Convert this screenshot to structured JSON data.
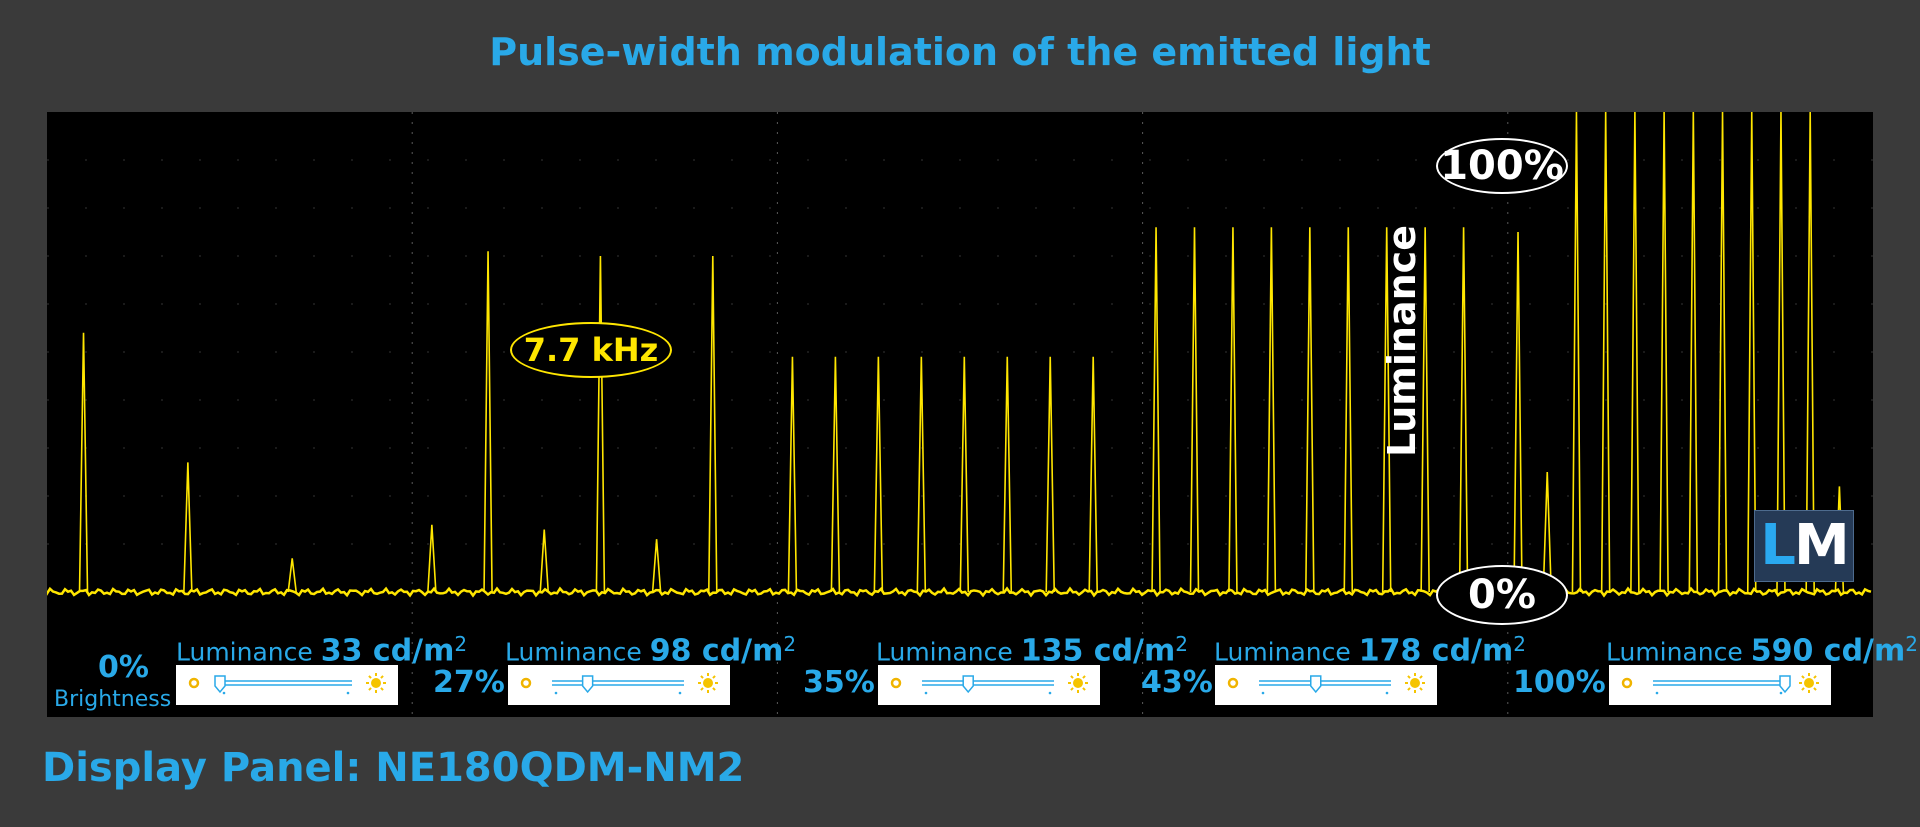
{
  "title": "Pulse-width modulation of the emitted light",
  "panel_label": "Display Panel: NE180QDM-NM2",
  "frequency_label": "7.7 kHz",
  "scale_top_label": "100%",
  "scale_bottom_label": "0%",
  "y_axis_label": "Luminance",
  "logo_text": {
    "l": "L",
    "m": "M"
  },
  "colors": {
    "trace": "#ffe600",
    "accent": "#29a9e8",
    "background": "#3a3a3a",
    "scope": "#000000",
    "grid": "#5a5a5a"
  },
  "segments": [
    {
      "brightness": "0%",
      "brightness_caption": "Brightness",
      "luminance_prefix": "Luminance",
      "luminance_value": "33 cd/m",
      "unit_exp": "2",
      "slider_level": 0.0
    },
    {
      "brightness": "27%",
      "brightness_caption": "",
      "luminance_prefix": "Luminance",
      "luminance_value": "98 cd/m",
      "unit_exp": "2",
      "slider_level": 0.27
    },
    {
      "brightness": "35%",
      "brightness_caption": "",
      "luminance_prefix": "Luminance",
      "luminance_value": "135 cd/m",
      "unit_exp": "2",
      "slider_level": 0.35
    },
    {
      "brightness": "43%",
      "brightness_caption": "",
      "luminance_prefix": "Luminance",
      "luminance_value": "178 cd/m",
      "unit_exp": "2",
      "slider_level": 0.43
    },
    {
      "brightness": "100%",
      "brightness_caption": "",
      "luminance_prefix": "Luminance",
      "luminance_value": "590 cd/m",
      "unit_exp": "2",
      "slider_level": 1.0
    }
  ],
  "chart_data": {
    "type": "line",
    "title": "Pulse-width modulation of the emitted light",
    "ylabel": "Luminance",
    "ylim": [
      0,
      100
    ],
    "annotations": [
      "7.7 kHz",
      "100%",
      "0%"
    ],
    "series": [
      {
        "name": "0%",
        "baseline": 0,
        "pulse_peaks": [
          54,
          27,
          7
        ]
      },
      {
        "name": "27%",
        "baseline": 0,
        "pulse_peaks": [
          14,
          71,
          13,
          70,
          11,
          70
        ]
      },
      {
        "name": "35%",
        "baseline": 0,
        "pulse_peaks": [
          49,
          49,
          49,
          49,
          49,
          49,
          49,
          49
        ]
      },
      {
        "name": "43%",
        "baseline": 0,
        "pulse_peaks": [
          76,
          76,
          76,
          76,
          76,
          76,
          76,
          76,
          76
        ]
      },
      {
        "name": "100%",
        "baseline": 0,
        "pulse_peaks": [
          75,
          25,
          100,
          100,
          100,
          100,
          100,
          100,
          100,
          100,
          100,
          22
        ]
      }
    ]
  }
}
